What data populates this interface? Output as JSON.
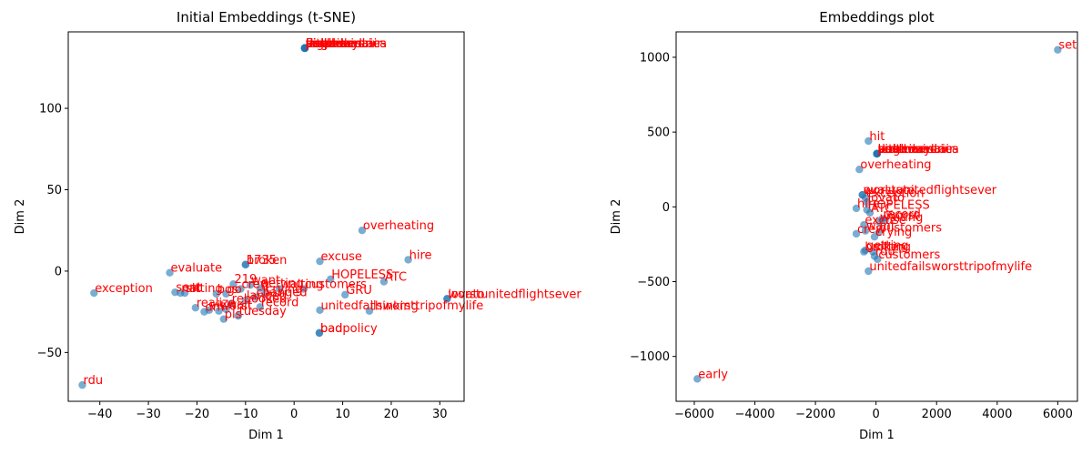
{
  "colors": {
    "point": "#1f77b4",
    "label": "#ff0000"
  },
  "chart_data": [
    {
      "type": "scatter",
      "title": "Initial Embeddings (t-SNE)",
      "xlabel": "Dim 1",
      "ylabel": "Dim 2",
      "xlim": [
        -46.5,
        35
      ],
      "ylim": [
        -80,
        147
      ],
      "xticks": [
        -40,
        -30,
        -20,
        -10,
        0,
        10,
        20,
        30
      ],
      "yticks": [
        -50,
        0,
        50,
        100
      ],
      "grid": false,
      "points": [
        {
          "x": 2.2,
          "y": 137,
          "label": "bos"
        },
        {
          "x": 2.2,
          "y": 137,
          "label": "unitedairlines"
        },
        {
          "x": 2.2,
          "y": 137,
          "label": "americanair"
        },
        {
          "x": 2.2,
          "y": 137,
          "label": "southwestair"
        },
        {
          "x": 2.2,
          "y": 137,
          "label": "jetblue"
        },
        {
          "x": 2.2,
          "y": 137,
          "label": "usairways"
        },
        {
          "x": 2.2,
          "y": 137,
          "label": "virginamerica"
        },
        {
          "x": 2.2,
          "y": 137,
          "label": "delta"
        },
        {
          "x": 2.2,
          "y": 137,
          "label": "flight"
        },
        {
          "x": 2.2,
          "y": 137,
          "label": "thanks"
        },
        {
          "x": 2.2,
          "y": 137,
          "label": "cancelled"
        },
        {
          "x": 2.2,
          "y": 137,
          "label": "help"
        },
        {
          "x": 14,
          "y": 25,
          "label": "overheating"
        },
        {
          "x": -10,
          "y": 4,
          "label": "1735"
        },
        {
          "x": -10,
          "y": 4,
          "label": "broken"
        },
        {
          "x": 5.3,
          "y": 6,
          "label": "excuse"
        },
        {
          "x": 23.5,
          "y": 7,
          "label": "hire"
        },
        {
          "x": -25.6,
          "y": -1,
          "label": "evaluate"
        },
        {
          "x": 7.5,
          "y": -5,
          "label": "HOPELESS"
        },
        {
          "x": 18.5,
          "y": -6.5,
          "label": "ATC"
        },
        {
          "x": -12.5,
          "y": -8,
          "label": "219"
        },
        {
          "x": -9,
          "y": -8.5,
          "label": "want"
        },
        {
          "x": -41.2,
          "y": -13.5,
          "label": "exception"
        },
        {
          "x": -24.5,
          "y": -13,
          "label": "sent"
        },
        {
          "x": -23.4,
          "y": -13.5,
          "label": "nat"
        },
        {
          "x": -22.5,
          "y": -13.5,
          "label": "sitting"
        },
        {
          "x": -16,
          "y": -14,
          "label": "bos"
        },
        {
          "x": -14,
          "y": -14,
          "label": "go"
        },
        {
          "x": -11,
          "y": -11,
          "label": "crew"
        },
        {
          "x": -7,
          "y": -10.5,
          "label": "getting"
        },
        {
          "x": -3,
          "y": -11,
          "label": "waiting"
        },
        {
          "x": 2,
          "y": -11,
          "label": "customers"
        },
        {
          "x": -6,
          "y": -14,
          "label": "crying"
        },
        {
          "x": 10.5,
          "y": -14.5,
          "label": "GRU"
        },
        {
          "x": 31.5,
          "y": -17,
          "label": "lovato"
        },
        {
          "x": 31.5,
          "y": -17,
          "label": "worstunitedflightsever"
        },
        {
          "x": -20.3,
          "y": -22.5,
          "label": "realize"
        },
        {
          "x": -13,
          "y": -20,
          "label": "rebooked"
        },
        {
          "x": -10,
          "y": -18,
          "label": "landed"
        },
        {
          "x": -8,
          "y": -16,
          "label": "changed"
        },
        {
          "x": -7,
          "y": -22,
          "label": "record"
        },
        {
          "x": -17.5,
          "y": -24,
          "label": "vit"
        },
        {
          "x": -15.5,
          "y": -24.5,
          "label": "worst"
        },
        {
          "x": -14,
          "y": -23.5,
          "label": "wait"
        },
        {
          "x": -18.5,
          "y": -25,
          "label": "dm"
        },
        {
          "x": -11.5,
          "y": -27.5,
          "label": "tuesday"
        },
        {
          "x": -14.5,
          "y": -29.5,
          "label": "pls"
        },
        {
          "x": 5.3,
          "y": -24,
          "label": "unitedfailsworsttripofmylife"
        },
        {
          "x": 15.5,
          "y": -24.5,
          "label": "thinking"
        },
        {
          "x": 5.2,
          "y": -38,
          "label": "bad"
        },
        {
          "x": 5.2,
          "y": -38,
          "label": "badpolicy"
        },
        {
          "x": -43.6,
          "y": -70,
          "label": "rdu"
        }
      ]
    },
    {
      "type": "scatter",
      "title": "Embeddings plot",
      "xlabel": "Dim 1",
      "ylabel": "Dim 2",
      "xlim": [
        -6600,
        6650
      ],
      "ylim": [
        -1300,
        1170
      ],
      "xticks": [
        -6000,
        -4000,
        -2000,
        0,
        2000,
        4000,
        6000
      ],
      "yticks": [
        -1000,
        -500,
        0,
        500,
        1000
      ],
      "grid": false,
      "points": [
        {
          "x": 6000,
          "y": 1050,
          "label": "set"
        },
        {
          "x": -250,
          "y": 440,
          "label": "hit"
        },
        {
          "x": 30,
          "y": 355,
          "label": "bos"
        },
        {
          "x": 30,
          "y": 355,
          "label": "unitedairlines"
        },
        {
          "x": 30,
          "y": 355,
          "label": "americanair"
        },
        {
          "x": 30,
          "y": 355,
          "label": "southwestair"
        },
        {
          "x": 30,
          "y": 355,
          "label": "jetblue"
        },
        {
          "x": 30,
          "y": 355,
          "label": "usairways"
        },
        {
          "x": 30,
          "y": 355,
          "label": "virginamerica"
        },
        {
          "x": 30,
          "y": 355,
          "label": "delta"
        },
        {
          "x": -550,
          "y": 250,
          "label": "overheating"
        },
        {
          "x": -450,
          "y": 80,
          "label": "evaluate"
        },
        {
          "x": -450,
          "y": 80,
          "label": "worstunitedflightsever"
        },
        {
          "x": -350,
          "y": 60,
          "label": "exception"
        },
        {
          "x": -300,
          "y": 30,
          "label": "lovato"
        },
        {
          "x": -650,
          "y": -10,
          "label": "hire"
        },
        {
          "x": -300,
          "y": -20,
          "label": "HOPELESS"
        },
        {
          "x": -200,
          "y": -40,
          "label": "ATC"
        },
        {
          "x": -400,
          "y": -120,
          "label": "excuse"
        },
        {
          "x": 200,
          "y": -80,
          "label": "record"
        },
        {
          "x": 300,
          "y": -90,
          "label": "worst"
        },
        {
          "x": 100,
          "y": -100,
          "label": "waiting"
        },
        {
          "x": -650,
          "y": -180,
          "label": "crew"
        },
        {
          "x": -350,
          "y": -160,
          "label": "want"
        },
        {
          "x": 100,
          "y": -170,
          "label": "customers"
        },
        {
          "x": -50,
          "y": -200,
          "label": "crying"
        },
        {
          "x": -400,
          "y": -300,
          "label": "broken"
        },
        {
          "x": -350,
          "y": -290,
          "label": "getting"
        },
        {
          "x": -100,
          "y": -300,
          "label": "sitting"
        },
        {
          "x": -50,
          "y": -330,
          "label": "rdu"
        },
        {
          "x": 50,
          "y": -350,
          "label": "customers"
        },
        {
          "x": -250,
          "y": -430,
          "label": "unitedfailsworsttripofmylife"
        },
        {
          "x": -5900,
          "y": -1150,
          "label": "early"
        }
      ]
    }
  ]
}
